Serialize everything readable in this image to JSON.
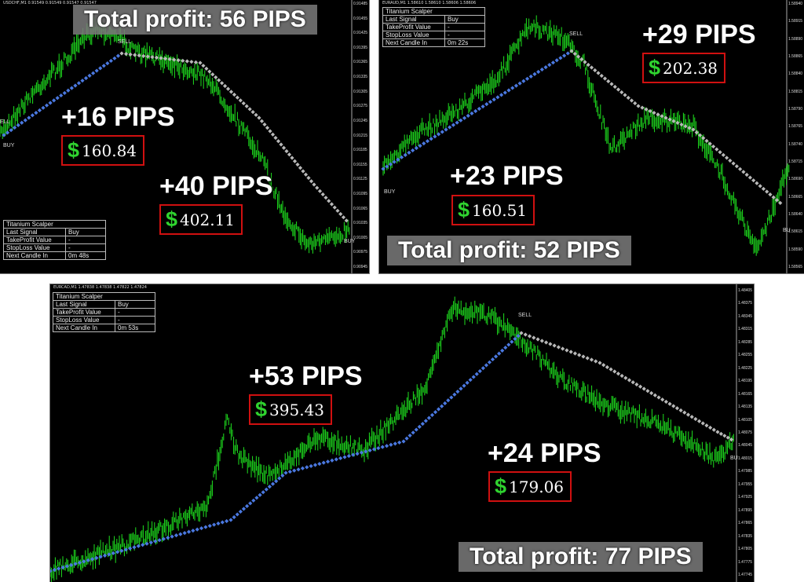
{
  "panels": [
    {
      "symbol": "USDCHF,M1  0.91549 0.91549 0.91547 0.91547",
      "info": {
        "title": "Titanium Scalper",
        "rows": [
          [
            "Last Signal",
            "Buy"
          ],
          [
            "TakeProfit Value",
            "-"
          ],
          [
            "StopLoss Value",
            "-"
          ],
          [
            "Next Candle In",
            "0m 48s"
          ]
        ]
      },
      "total": "Total profit: 56 PIPS",
      "trades": [
        {
          "pips": "+16 PIPS",
          "currency": "$",
          "amount": "160.84"
        },
        {
          "pips": "+40 PIPS",
          "currency": "$",
          "amount": "402.11"
        }
      ],
      "signals": [
        "SELL",
        "ELL",
        "BUY",
        "BUY"
      ],
      "axis_labels": [
        "0.91485",
        "0.91455",
        "0.91425",
        "0.91395",
        "0.91365",
        "0.91335",
        "0.91305",
        "0.91275",
        "0.91245",
        "0.91215",
        "0.91185",
        "0.91155",
        "0.91125",
        "0.91095",
        "0.91065",
        "0.91035",
        "0.91005",
        "0.90975",
        "0.90945"
      ]
    },
    {
      "symbol": "EURAUD,M1  1.58610 1.58610 1.58606 1.58606",
      "info": {
        "title": "Titanium Scalper",
        "rows": [
          [
            "Last Signal",
            "Buy"
          ],
          [
            "TakeProfit Value",
            "-"
          ],
          [
            "StopLoss Value",
            "-"
          ],
          [
            "Next Candle In",
            "0m 22s"
          ]
        ]
      },
      "total": "Total profit: 52 PIPS",
      "trades": [
        {
          "pips": "+29 PIPS",
          "currency": "$",
          "amount": "202.38"
        },
        {
          "pips": "+23 PIPS",
          "currency": "$",
          "amount": "160.51"
        }
      ],
      "signals": [
        "SELL",
        "BUY",
        "BU"
      ],
      "axis_labels": [
        "1.58940",
        "1.58915",
        "1.58890",
        "1.58865",
        "1.58840",
        "1.58815",
        "1.58790",
        "1.58765",
        "1.58740",
        "1.58715",
        "1.58690",
        "1.58665",
        "1.58640",
        "1.58615",
        "1.58590",
        "1.58565"
      ]
    },
    {
      "symbol": "EURCAD,M1  1.47838 1.47838 1.47822 1.47824",
      "info": {
        "title": "Titanium Scalper",
        "rows": [
          [
            "Last Signal",
            "Buy"
          ],
          [
            "TakeProfit Value",
            "-"
          ],
          [
            "StopLoss Value",
            "-"
          ],
          [
            "Next Candle In",
            "0m 53s"
          ]
        ]
      },
      "total": "Total profit: 77 PIPS",
      "trades": [
        {
          "pips": "+53 PIPS",
          "currency": "$",
          "amount": "395.43"
        },
        {
          "pips": "+24 PIPS",
          "currency": "$",
          "amount": "179.06"
        }
      ],
      "signals": [
        "SELL",
        "BU"
      ],
      "axis_labels": [
        "1.48405",
        "1.48375",
        "1.48345",
        "1.48315",
        "1.48285",
        "1.48255",
        "1.48225",
        "1.48195",
        "1.48165",
        "1.48135",
        "1.48105",
        "1.48075",
        "1.48045",
        "1.48015",
        "1.47985",
        "1.47955",
        "1.47925",
        "1.47895",
        "1.47865",
        "1.47835",
        "1.47805",
        "1.47775",
        "1.47745"
      ]
    }
  ]
}
